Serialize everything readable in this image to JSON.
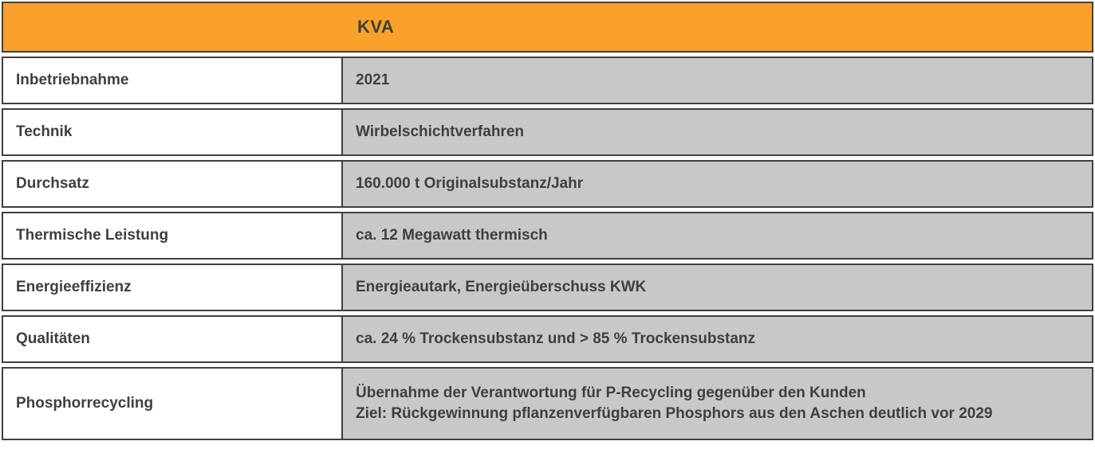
{
  "table": {
    "header": {
      "title": "KVA"
    },
    "rows": [
      {
        "label": "Inbetriebnahme",
        "value": "2021"
      },
      {
        "label": "Technik",
        "value": "Wirbelschichtverfahren"
      },
      {
        "label": "Durchsatz",
        "value": "160.000 t Originalsubstanz/Jahr"
      },
      {
        "label": "Thermische Leistung",
        "value": "ca. 12 Megawatt thermisch"
      },
      {
        "label": "Energieeffizienz",
        "value": "Energieautark, Energieüberschuss KWK"
      },
      {
        "label": "Qualitäten",
        "value": "ca. 24 % Trockensubstanz und > 85 % Trockensubstanz"
      },
      {
        "label": "Phosphorrecycling",
        "value": "Übernahme der Verantwortung für P-Recycling gegenüber den Kunden\nZiel: Rückgewinnung pflanzenverfügbaren Phosphors aus den Aschen deutlich vor 2029"
      }
    ],
    "colors": {
      "header_bg": "#F9A12B",
      "label_bg": "#FFFFFF",
      "value_bg": "#C8C8C6",
      "border": "#404040",
      "text": "#3F3F3F"
    }
  }
}
